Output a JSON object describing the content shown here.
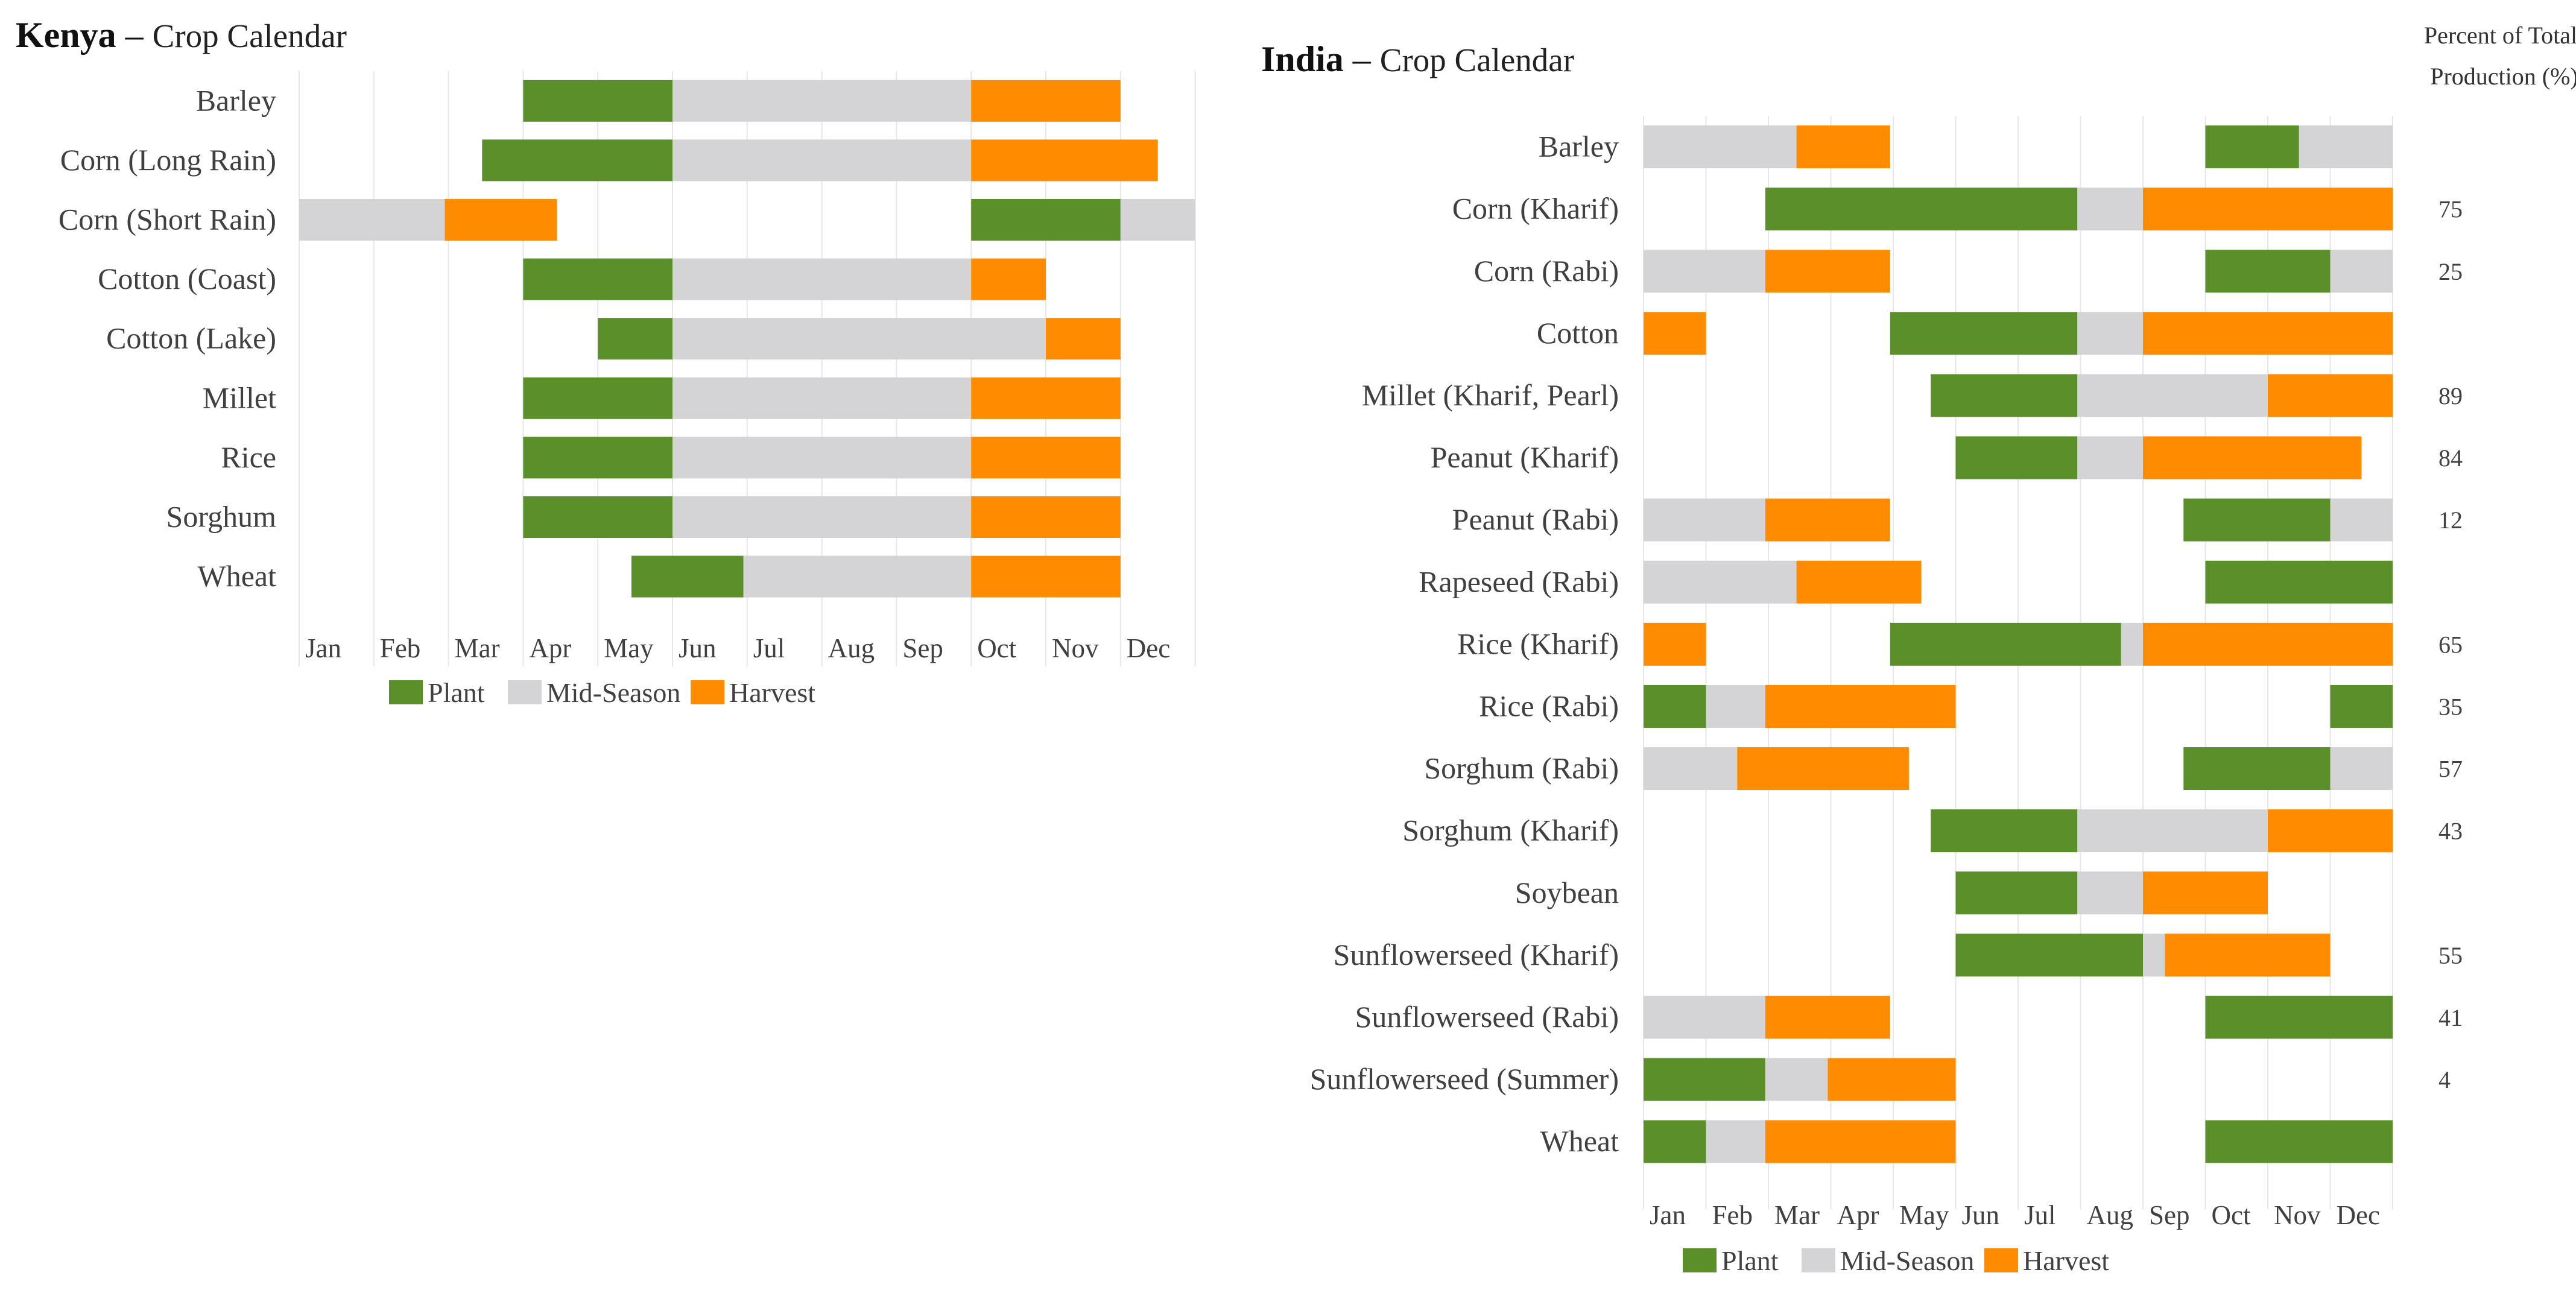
{
  "colors": {
    "plant": "#5a8f29",
    "mid": "#d4d3d5",
    "harvest": "#ff8c00",
    "grid": "#e6e6e6",
    "background": "#ffffff"
  },
  "chart_data": [
    {
      "type": "gantt",
      "id": "kenya",
      "title": {
        "country": "Kenya",
        "separator": " – ",
        "subtitle": "Crop Calendar"
      },
      "xlabel": "",
      "ylabel": "",
      "xlim": [
        0,
        12
      ],
      "months": [
        "Jan",
        "Feb",
        "Mar",
        "Apr",
        "May",
        "Jun",
        "Jul",
        "Aug",
        "Sep",
        "Oct",
        "Nov",
        "Dec"
      ],
      "legend": [
        {
          "key": "plant",
          "label": "Plant"
        },
        {
          "key": "mid",
          "label": "Mid-Season"
        },
        {
          "key": "harvest",
          "label": "Harvest"
        }
      ],
      "rows": [
        {
          "crop": "Barley",
          "segments": [
            {
              "phase": "plant",
              "start": 3.0,
              "end": 5.0
            },
            {
              "phase": "mid",
              "start": 5.0,
              "end": 9.0
            },
            {
              "phase": "harvest",
              "start": 9.0,
              "end": 11.0
            }
          ]
        },
        {
          "crop": "Corn (Long Rain)",
          "segments": [
            {
              "phase": "plant",
              "start": 2.45,
              "end": 5.0
            },
            {
              "phase": "mid",
              "start": 5.0,
              "end": 9.0
            },
            {
              "phase": "harvest",
              "start": 9.0,
              "end": 11.5
            }
          ]
        },
        {
          "crop": "Corn (Short Rain)",
          "segments": [
            {
              "phase": "mid",
              "start": 0.0,
              "end": 1.95
            },
            {
              "phase": "harvest",
              "start": 1.95,
              "end": 3.45
            },
            {
              "phase": "plant",
              "start": 9.0,
              "end": 11.0
            },
            {
              "phase": "mid",
              "start": 11.0,
              "end": 12.0
            }
          ]
        },
        {
          "crop": "Cotton (Coast)",
          "segments": [
            {
              "phase": "plant",
              "start": 3.0,
              "end": 5.0
            },
            {
              "phase": "mid",
              "start": 5.0,
              "end": 9.0
            },
            {
              "phase": "harvest",
              "start": 9.0,
              "end": 10.0
            }
          ]
        },
        {
          "crop": "Cotton (Lake)",
          "segments": [
            {
              "phase": "plant",
              "start": 4.0,
              "end": 5.0
            },
            {
              "phase": "mid",
              "start": 5.0,
              "end": 10.0
            },
            {
              "phase": "harvest",
              "start": 10.0,
              "end": 11.0
            }
          ]
        },
        {
          "crop": "Millet",
          "segments": [
            {
              "phase": "plant",
              "start": 3.0,
              "end": 5.0
            },
            {
              "phase": "mid",
              "start": 5.0,
              "end": 9.0
            },
            {
              "phase": "harvest",
              "start": 9.0,
              "end": 11.0
            }
          ]
        },
        {
          "crop": "Rice",
          "segments": [
            {
              "phase": "plant",
              "start": 3.0,
              "end": 5.0
            },
            {
              "phase": "mid",
              "start": 5.0,
              "end": 9.0
            },
            {
              "phase": "harvest",
              "start": 9.0,
              "end": 11.0
            }
          ]
        },
        {
          "crop": "Sorghum",
          "segments": [
            {
              "phase": "plant",
              "start": 3.0,
              "end": 5.0
            },
            {
              "phase": "mid",
              "start": 5.0,
              "end": 9.0
            },
            {
              "phase": "harvest",
              "start": 9.0,
              "end": 11.0
            }
          ]
        },
        {
          "crop": "Wheat",
          "segments": [
            {
              "phase": "plant",
              "start": 4.45,
              "end": 5.95
            },
            {
              "phase": "mid",
              "start": 5.95,
              "end": 9.0
            },
            {
              "phase": "harvest",
              "start": 9.0,
              "end": 11.0
            }
          ]
        }
      ]
    },
    {
      "type": "gantt",
      "id": "india",
      "title": {
        "country": "India",
        "separator": " – ",
        "subtitle": "Crop Calendar"
      },
      "xlabel": "",
      "ylabel": "",
      "xlim": [
        0,
        12
      ],
      "percent_header": [
        "Percent of Total",
        "Production (%)"
      ],
      "months": [
        "Jan",
        "Feb",
        "Mar",
        "Apr",
        "May",
        "Jun",
        "Jul",
        "Aug",
        "Sep",
        "Oct",
        "Nov",
        "Dec"
      ],
      "legend": [
        {
          "key": "plant",
          "label": "Plant"
        },
        {
          "key": "mid",
          "label": "Mid-Season"
        },
        {
          "key": "harvest",
          "label": "Harvest"
        }
      ],
      "rows": [
        {
          "crop": "Barley",
          "percent": "",
          "segments": [
            {
              "phase": "mid",
              "start": 0.0,
              "end": 2.45
            },
            {
              "phase": "harvest",
              "start": 2.45,
              "end": 3.95
            },
            {
              "phase": "plant",
              "start": 9.0,
              "end": 10.5
            },
            {
              "phase": "mid",
              "start": 10.5,
              "end": 12.0
            }
          ]
        },
        {
          "crop": "Corn (Kharif)",
          "percent": "75",
          "segments": [
            {
              "phase": "plant",
              "start": 1.95,
              "end": 6.95
            },
            {
              "phase": "mid",
              "start": 6.95,
              "end": 8.0
            },
            {
              "phase": "harvest",
              "start": 8.0,
              "end": 12.0
            }
          ]
        },
        {
          "crop": "Corn (Rabi)",
          "percent": "25",
          "segments": [
            {
              "phase": "mid",
              "start": 0.0,
              "end": 1.95
            },
            {
              "phase": "harvest",
              "start": 1.95,
              "end": 3.95
            },
            {
              "phase": "plant",
              "start": 9.0,
              "end": 11.0
            },
            {
              "phase": "mid",
              "start": 11.0,
              "end": 12.0
            }
          ]
        },
        {
          "crop": "Cotton",
          "percent": "",
          "segments": [
            {
              "phase": "harvest",
              "start": 0.0,
              "end": 1.0
            },
            {
              "phase": "plant",
              "start": 3.95,
              "end": 6.95
            },
            {
              "phase": "mid",
              "start": 6.95,
              "end": 8.0
            },
            {
              "phase": "harvest",
              "start": 8.0,
              "end": 12.0
            }
          ]
        },
        {
          "crop": "Millet (Kharif, Pearl)",
          "percent": "89",
          "segments": [
            {
              "phase": "plant",
              "start": 4.6,
              "end": 6.95
            },
            {
              "phase": "mid",
              "start": 6.95,
              "end": 10.0
            },
            {
              "phase": "harvest",
              "start": 10.0,
              "end": 12.0
            }
          ]
        },
        {
          "crop": "Peanut (Kharif)",
          "percent": "84",
          "segments": [
            {
              "phase": "plant",
              "start": 5.0,
              "end": 6.95
            },
            {
              "phase": "mid",
              "start": 6.95,
              "end": 8.0
            },
            {
              "phase": "harvest",
              "start": 8.0,
              "end": 11.5
            }
          ]
        },
        {
          "crop": "Peanut (Rabi)",
          "percent": "12",
          "segments": [
            {
              "phase": "mid",
              "start": 0.0,
              "end": 1.95
            },
            {
              "phase": "harvest",
              "start": 1.95,
              "end": 3.95
            },
            {
              "phase": "plant",
              "start": 8.65,
              "end": 11.0
            },
            {
              "phase": "mid",
              "start": 11.0,
              "end": 12.0
            }
          ]
        },
        {
          "crop": "Rapeseed (Rabi)",
          "percent": "",
          "segments": [
            {
              "phase": "mid",
              "start": 0.0,
              "end": 2.45
            },
            {
              "phase": "harvest",
              "start": 2.45,
              "end": 4.45
            },
            {
              "phase": "plant",
              "start": 9.0,
              "end": 12.0
            }
          ]
        },
        {
          "crop": "Rice (Kharif)",
          "percent": "65",
          "segments": [
            {
              "phase": "harvest",
              "start": 0.0,
              "end": 1.0
            },
            {
              "phase": "plant",
              "start": 3.95,
              "end": 7.65
            },
            {
              "phase": "mid",
              "start": 7.65,
              "end": 8.0
            },
            {
              "phase": "harvest",
              "start": 8.0,
              "end": 12.0
            }
          ]
        },
        {
          "crop": "Rice (Rabi)",
          "percent": "35",
          "segments": [
            {
              "phase": "plant",
              "start": 0.0,
              "end": 1.0
            },
            {
              "phase": "mid",
              "start": 1.0,
              "end": 1.95
            },
            {
              "phase": "harvest",
              "start": 1.95,
              "end": 5.0
            },
            {
              "phase": "plant",
              "start": 11.0,
              "end": 12.0
            }
          ]
        },
        {
          "crop": "Sorghum (Rabi)",
          "percent": "57",
          "segments": [
            {
              "phase": "mid",
              "start": 0.0,
              "end": 1.5
            },
            {
              "phase": "harvest",
              "start": 1.5,
              "end": 4.25
            },
            {
              "phase": "plant",
              "start": 8.65,
              "end": 11.0
            },
            {
              "phase": "mid",
              "start": 11.0,
              "end": 12.0
            }
          ]
        },
        {
          "crop": "Sorghum (Kharif)",
          "percent": "43",
          "segments": [
            {
              "phase": "plant",
              "start": 4.6,
              "end": 6.95
            },
            {
              "phase": "mid",
              "start": 6.95,
              "end": 10.0
            },
            {
              "phase": "harvest",
              "start": 10.0,
              "end": 12.0
            }
          ]
        },
        {
          "crop": "Soybean",
          "percent": "",
          "segments": [
            {
              "phase": "plant",
              "start": 5.0,
              "end": 6.95
            },
            {
              "phase": "mid",
              "start": 6.95,
              "end": 8.0
            },
            {
              "phase": "harvest",
              "start": 8.0,
              "end": 10.0
            }
          ]
        },
        {
          "crop": "Sunflowerseed (Kharif)",
          "percent": "55",
          "segments": [
            {
              "phase": "plant",
              "start": 5.0,
              "end": 8.0
            },
            {
              "phase": "mid",
              "start": 8.0,
              "end": 8.35
            },
            {
              "phase": "harvest",
              "start": 8.35,
              "end": 11.0
            }
          ]
        },
        {
          "crop": "Sunflowerseed (Rabi)",
          "percent": "41",
          "segments": [
            {
              "phase": "mid",
              "start": 0.0,
              "end": 1.95
            },
            {
              "phase": "harvest",
              "start": 1.95,
              "end": 3.95
            },
            {
              "phase": "plant",
              "start": 9.0,
              "end": 12.0
            }
          ]
        },
        {
          "crop": "Sunflowerseed (Summer)",
          "percent": "4",
          "segments": [
            {
              "phase": "plant",
              "start": 0.0,
              "end": 1.95
            },
            {
              "phase": "mid",
              "start": 1.95,
              "end": 2.95
            },
            {
              "phase": "harvest",
              "start": 2.95,
              "end": 5.0
            }
          ]
        },
        {
          "crop": "Wheat",
          "percent": "",
          "segments": [
            {
              "phase": "plant",
              "start": 0.0,
              "end": 1.0
            },
            {
              "phase": "mid",
              "start": 1.0,
              "end": 1.95
            },
            {
              "phase": "harvest",
              "start": 1.95,
              "end": 5.0
            },
            {
              "phase": "plant",
              "start": 9.0,
              "end": 12.0
            }
          ]
        }
      ]
    }
  ]
}
